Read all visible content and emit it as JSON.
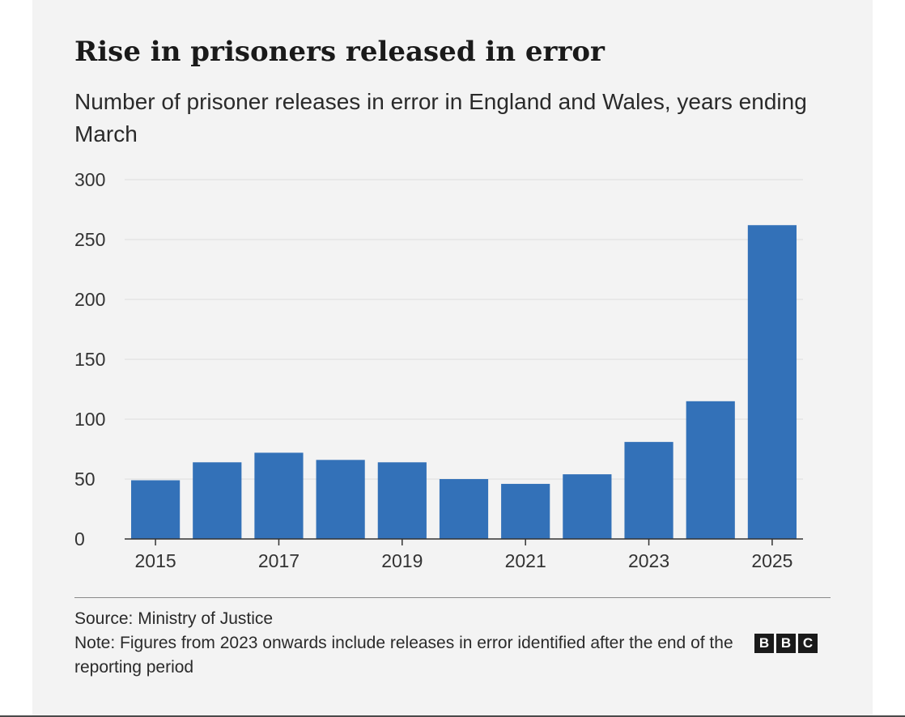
{
  "chart_data": {
    "type": "bar",
    "title": "Rise in prisoners released in error",
    "subtitle": "Number of prisoner releases in error in England and Wales, years ending March",
    "categories": [
      "2015",
      "2016",
      "2017",
      "2018",
      "2019",
      "2020",
      "2021",
      "2022",
      "2023",
      "2024",
      "2025"
    ],
    "values": [
      49,
      64,
      72,
      66,
      64,
      50,
      46,
      54,
      81,
      115,
      262
    ],
    "xtick_labels": [
      "2015",
      "",
      "2017",
      "",
      "2019",
      "",
      "2021",
      "",
      "2023",
      "",
      "2025"
    ],
    "yticks": [
      0,
      50,
      100,
      150,
      200,
      250,
      300
    ],
    "ylim": [
      0,
      300
    ],
    "xlabel": "",
    "ylabel": "",
    "grid": true,
    "bar_color": "#3371b8"
  },
  "footer": {
    "source": "Source: Ministry of Justice",
    "note": "Note: Figures from 2023 onwards include releases in error identified after the end of the reporting period"
  },
  "logo": {
    "letters": [
      "B",
      "B",
      "C"
    ]
  }
}
